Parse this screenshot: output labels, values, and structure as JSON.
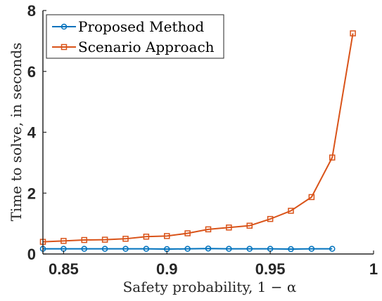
{
  "chart_data": {
    "type": "line",
    "xlabel": "Safety probability, 1 − α",
    "ylabel": "Time to solve, in seconds",
    "xlim": [
      0.84,
      1.0
    ],
    "ylim": [
      0,
      8
    ],
    "xticks": [
      "0.85",
      "0.9",
      "0.95",
      "1"
    ],
    "yticks": [
      "0",
      "2",
      "4",
      "6",
      "8"
    ],
    "grid": false,
    "legend_position": "top-left",
    "series": [
      {
        "name": "Proposed Method",
        "color": "#0072bd",
        "marker": "circle",
        "x": [
          0.84,
          0.85,
          0.86,
          0.87,
          0.88,
          0.89,
          0.9,
          0.91,
          0.92,
          0.93,
          0.94,
          0.95,
          0.96,
          0.97,
          0.98
        ],
        "y": [
          0.17,
          0.17,
          0.17,
          0.17,
          0.17,
          0.17,
          0.16,
          0.17,
          0.18,
          0.17,
          0.17,
          0.17,
          0.16,
          0.17,
          0.17
        ]
      },
      {
        "name": "Scenario Approach",
        "color": "#d95319",
        "marker": "square",
        "x": [
          0.84,
          0.85,
          0.86,
          0.87,
          0.88,
          0.89,
          0.9,
          0.91,
          0.92,
          0.93,
          0.94,
          0.95,
          0.96,
          0.97,
          0.98,
          0.99
        ],
        "y": [
          0.4,
          0.43,
          0.46,
          0.47,
          0.5,
          0.57,
          0.59,
          0.68,
          0.81,
          0.87,
          0.93,
          1.15,
          1.42,
          1.87,
          3.17,
          7.25
        ]
      }
    ]
  }
}
